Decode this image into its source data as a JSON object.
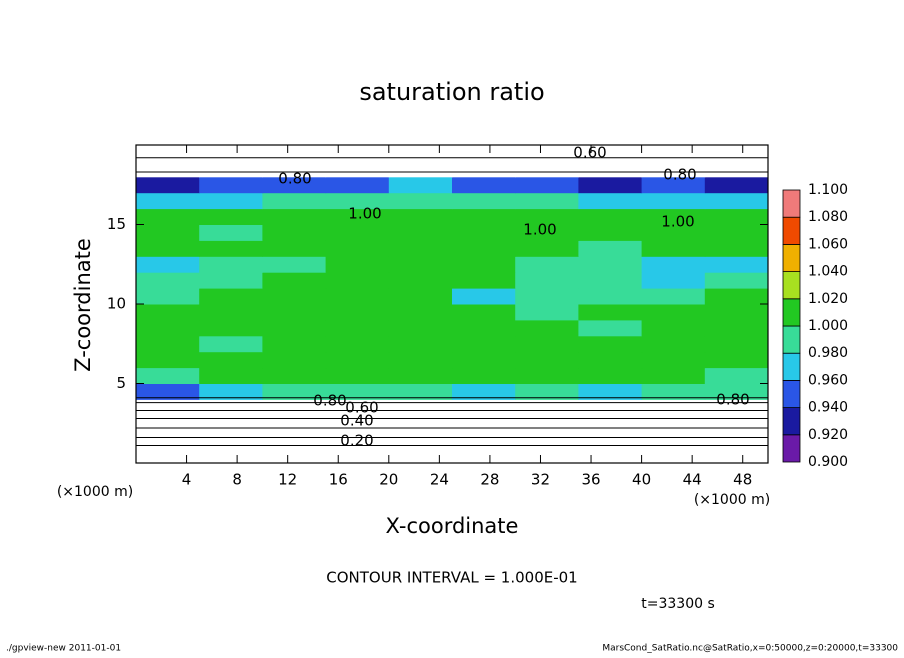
{
  "chart_data": {
    "type": "heatmap",
    "title": "saturation ratio",
    "x_label": "X-coordinate",
    "y_label": "Z-coordinate",
    "x_unit": "(×1000 m)",
    "y_unit": "(×1000 m)",
    "xlim": [
      0,
      50
    ],
    "ylim": [
      0,
      20
    ],
    "xticks": [
      4,
      8,
      12,
      16,
      20,
      24,
      28,
      32,
      36,
      40,
      44,
      48
    ],
    "yticks": [
      5,
      10,
      15
    ],
    "x": [
      2.5,
      7.5,
      12.5,
      17.5,
      22.5,
      27.5,
      32.5,
      37.5,
      42.5,
      47.5
    ],
    "y": [
      0.5,
      1.5,
      2.5,
      3.5,
      4.5,
      5.5,
      6.5,
      7.5,
      8.5,
      9.5,
      10.5,
      11.5,
      12.5,
      13.5,
      14.5,
      15.5,
      16.5,
      17.5,
      18.5,
      19.5
    ],
    "values": [
      [
        0.15,
        0.15,
        0.15,
        0.15,
        0.15,
        0.15,
        0.15,
        0.15,
        0.15,
        0.15
      ],
      [
        0.25,
        0.25,
        0.25,
        0.25,
        0.25,
        0.25,
        0.25,
        0.25,
        0.25,
        0.25
      ],
      [
        0.4,
        0.4,
        0.4,
        0.4,
        0.4,
        0.4,
        0.4,
        0.4,
        0.4,
        0.4
      ],
      [
        0.65,
        0.65,
        0.65,
        0.65,
        0.65,
        0.65,
        0.65,
        0.65,
        0.65,
        0.65
      ],
      [
        0.95,
        0.97,
        0.99,
        0.99,
        0.99,
        0.97,
        0.99,
        0.97,
        0.99,
        0.99
      ],
      [
        0.99,
        1.0,
        1.0,
        1.0,
        1.0,
        1.0,
        1.0,
        1.0,
        1.0,
        0.99
      ],
      [
        1.0,
        1.0,
        1.0,
        1.0,
        1.0,
        1.0,
        1.0,
        1.0,
        1.0,
        1.0
      ],
      [
        1.0,
        0.99,
        1.0,
        1.0,
        1.0,
        1.0,
        1.0,
        1.0,
        1.0,
        1.0
      ],
      [
        1.0,
        1.0,
        1.0,
        1.0,
        1.0,
        1.0,
        1.0,
        0.99,
        1.0,
        1.0
      ],
      [
        1.0,
        1.0,
        1.0,
        1.0,
        1.0,
        1.0,
        0.99,
        1.0,
        1.0,
        1.0
      ],
      [
        0.99,
        1.0,
        1.0,
        1.0,
        1.0,
        0.96,
        0.99,
        0.99,
        0.99,
        1.0
      ],
      [
        0.99,
        0.99,
        1.0,
        1.0,
        1.0,
        1.0,
        0.99,
        0.98,
        0.97,
        0.98
      ],
      [
        0.97,
        0.98,
        0.99,
        1.0,
        1.0,
        1.0,
        0.99,
        0.98,
        0.97,
        0.96
      ],
      [
        1.0,
        1.0,
        1.0,
        1.0,
        1.0,
        1.0,
        1.0,
        0.99,
        1.0,
        1.0
      ],
      [
        1.0,
        0.99,
        1.0,
        1.0,
        1.0,
        1.0,
        1.0,
        1.0,
        1.0,
        1.0
      ],
      [
        1.0,
        1.0,
        1.0,
        1.0,
        1.0,
        1.0,
        1.0,
        1.0,
        1.0,
        1.0
      ],
      [
        0.96,
        0.97,
        0.99,
        0.99,
        0.99,
        0.99,
        0.98,
        0.96,
        0.97,
        0.97
      ],
      [
        0.93,
        0.94,
        0.95,
        0.95,
        0.96,
        0.95,
        0.94,
        0.93,
        0.94,
        0.93
      ],
      [
        0.8,
        0.8,
        0.8,
        0.8,
        0.8,
        0.8,
        0.8,
        0.8,
        0.8,
        0.8
      ],
      [
        0.6,
        0.6,
        0.6,
        0.6,
        0.6,
        0.6,
        0.6,
        0.6,
        0.6,
        0.6
      ]
    ],
    "colorbar_ticks": [
      {
        "value": 0.9,
        "label": "0.900"
      },
      {
        "value": 0.92,
        "label": "0.920"
      },
      {
        "value": 0.94,
        "label": "0.940"
      },
      {
        "value": 0.96,
        "label": "0.960"
      },
      {
        "value": 0.98,
        "label": "0.980"
      },
      {
        "value": 1.0,
        "label": "1.000"
      },
      {
        "value": 1.02,
        "label": "1.020"
      },
      {
        "value": 1.04,
        "label": "1.040"
      },
      {
        "value": 1.06,
        "label": "1.060"
      },
      {
        "value": 1.08,
        "label": "1.080"
      },
      {
        "value": 1.1,
        "label": "1.100"
      }
    ],
    "colors": [
      "#6a1aa8",
      "#1a1aa0",
      "#2a56e6",
      "#28c8e8",
      "#38dc98",
      "#22c822",
      "#a8e020",
      "#f0b000",
      "#f04a00",
      "#f07a7a"
    ],
    "contour_labels": [
      {
        "value": 0.6,
        "label": "0.60"
      },
      {
        "value": 0.8,
        "label": "0.80"
      },
      {
        "value": 0.8,
        "label": "0.80"
      },
      {
        "value": 1.0,
        "label": "1.00"
      },
      {
        "value": 1.0,
        "label": "1.00"
      },
      {
        "value": 1.0,
        "label": "1.00"
      },
      {
        "value": 0.8,
        "label": "0.80"
      },
      {
        "value": 0.6,
        "label": "0.60"
      },
      {
        "value": 0.4,
        "label": "0.40"
      },
      {
        "value": 0.2,
        "label": "0.20"
      },
      {
        "value": 0.8,
        "label": "0.80"
      }
    ],
    "contour_interval": "CONTOUR INTERVAL = 1.000E-01",
    "time": "t=33300 s",
    "footer_left": "./gpview-new   2011-01-01",
    "footer_right": "MarsCond_SatRatio.nc@SatRatio,x=0:50000,z=0:20000,t=33300"
  }
}
